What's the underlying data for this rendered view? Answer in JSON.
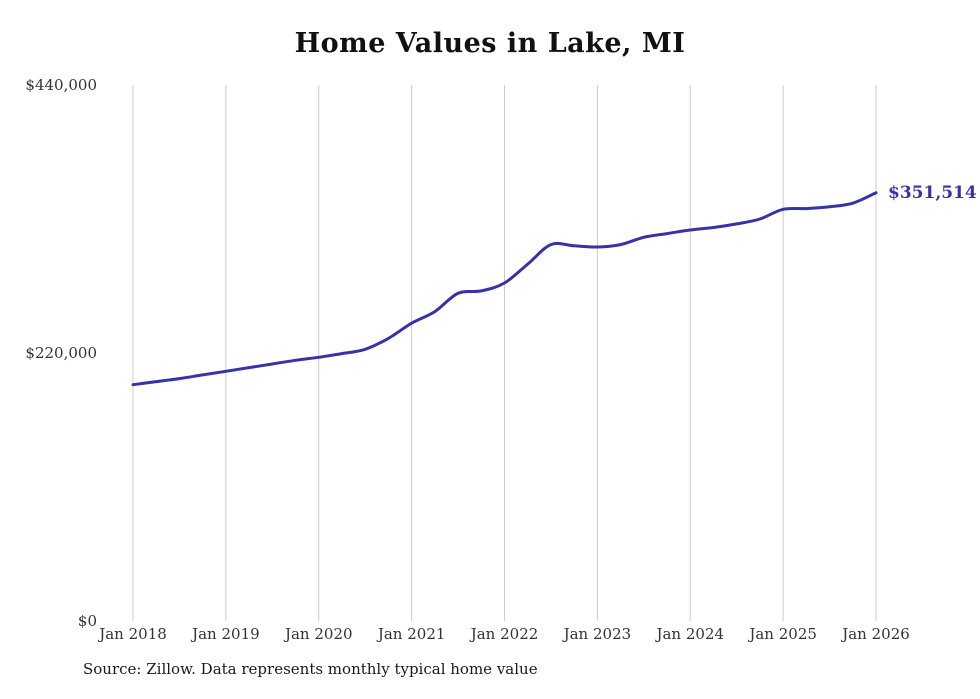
{
  "chart_data": {
    "type": "line",
    "title": "Home Values in Lake, MI",
    "source_note": "Source: Zillow. Data represents monthly typical home value",
    "end_label": "$351,514",
    "line_color": "#3632a8",
    "grid_color": "#cccccc",
    "grid": "vertical-only",
    "ylim": [
      0,
      440000
    ],
    "y_ticks": [
      0,
      220000,
      440000
    ],
    "y_tick_labels": [
      "$0",
      "$220,000",
      "$440,000"
    ],
    "x_tick_months": [
      0,
      12,
      24,
      36,
      48,
      60,
      72,
      84,
      96
    ],
    "x_tick_labels": [
      "Jan 2018",
      "Jan 2019",
      "Jan 2020",
      "Jan 2021",
      "Jan 2022",
      "Jan 2023",
      "Jan 2024",
      "Jan 2025",
      "Jan 2026"
    ],
    "series": [
      {
        "name": "Typical home value",
        "x_months_from_jan2018": [
          0,
          3,
          6,
          9,
          12,
          15,
          18,
          21,
          24,
          27,
          30,
          33,
          36,
          39,
          42,
          45,
          48,
          51,
          54,
          57,
          60,
          63,
          66,
          69,
          72,
          75,
          78,
          81,
          84,
          87,
          90,
          93,
          96
        ],
        "values": [
          194000,
          196500,
          199000,
          202000,
          205000,
          208000,
          211000,
          214000,
          216500,
          219500,
          223000,
          232000,
          244500,
          254000,
          269000,
          271000,
          277500,
          293000,
          309000,
          308000,
          307000,
          309000,
          315000,
          318000,
          321000,
          323000,
          326000,
          330000,
          338000,
          338500,
          340000,
          343000,
          351514
        ]
      }
    ]
  }
}
